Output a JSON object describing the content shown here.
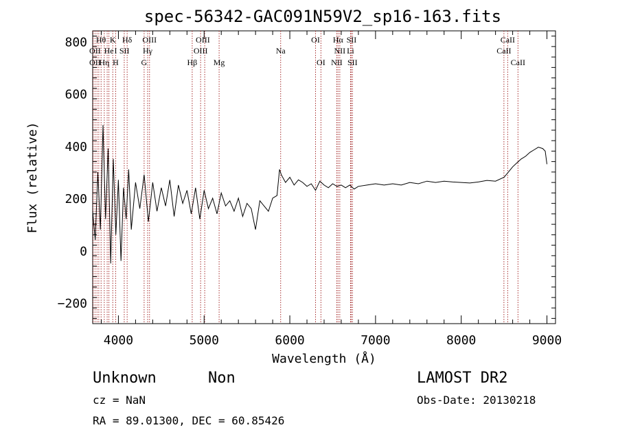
{
  "chart_data": {
    "type": "line",
    "title": "spec-56342-GAC091N59V2_sp16-163.fits",
    "xlabel": "Wavelength (Å)",
    "ylabel": "Flux (relative)",
    "xlim": [
      3700,
      9100
    ],
    "ylim": [
      -280,
      840
    ],
    "x_ticks": [
      4000,
      5000,
      6000,
      7000,
      8000,
      9000
    ],
    "y_ticks": [
      -200,
      0,
      200,
      400,
      600,
      800
    ],
    "grid": false,
    "series": [
      {
        "x": [
          3700,
          3730,
          3760,
          3790,
          3820,
          3850,
          3880,
          3910,
          3940,
          3970,
          4000,
          4030,
          4060,
          4090,
          4120,
          4150,
          4200,
          4250,
          4300,
          4350,
          4400,
          4450,
          4500,
          4550,
          4600,
          4650,
          4700,
          4750,
          4800,
          4850,
          4900,
          4950,
          5000,
          5050,
          5100,
          5150,
          5200,
          5250,
          5300,
          5350,
          5400,
          5450,
          5500,
          5550,
          5600,
          5650,
          5700,
          5750,
          5800,
          5850,
          5880,
          5900,
          5950,
          6000,
          6050,
          6100,
          6150,
          6200,
          6250,
          6300,
          6350,
          6400,
          6450,
          6500,
          6550,
          6600,
          6650,
          6700,
          6750,
          6800,
          6900,
          7000,
          7100,
          7200,
          7300,
          7400,
          7500,
          7600,
          7700,
          7800,
          7900,
          8000,
          8100,
          8200,
          8300,
          8400,
          8500,
          8550,
          8600,
          8650,
          8700,
          8750,
          8800,
          8850,
          8900,
          8950,
          8980,
          9000
        ],
        "y": [
          150,
          40,
          300,
          80,
          480,
          120,
          390,
          -50,
          350,
          60,
          270,
          -40,
          240,
          120,
          310,
          80,
          260,
          160,
          290,
          110,
          260,
          150,
          240,
          170,
          270,
          130,
          250,
          180,
          230,
          140,
          240,
          120,
          230,
          160,
          200,
          140,
          220,
          170,
          190,
          150,
          200,
          130,
          180,
          160,
          80,
          190,
          170,
          150,
          200,
          210,
          310,
          290,
          260,
          280,
          250,
          270,
          260,
          245,
          255,
          230,
          265,
          250,
          240,
          255,
          245,
          250,
          240,
          250,
          235,
          245,
          250,
          255,
          250,
          255,
          250,
          260,
          255,
          265,
          260,
          265,
          262,
          260,
          258,
          262,
          268,
          265,
          280,
          300,
          320,
          335,
          350,
          360,
          375,
          385,
          395,
          390,
          380,
          330
        ]
      }
    ],
    "lines": {
      "positions": [
        3705,
        3727,
        3750,
        3771,
        3798,
        3835,
        3869,
        3889,
        3934,
        3968,
        4068,
        4102,
        4300,
        4341,
        4363,
        4861,
        4959,
        5007,
        5175,
        5893,
        6300,
        6363,
        6548,
        6563,
        6583,
        6708,
        6716,
        6731,
        8498,
        8542,
        8662
      ],
      "labels": [
        {
          "text": "Hθ",
          "x": 3797,
          "row": 0
        },
        {
          "text": "K",
          "x": 3934,
          "row": 0
        },
        {
          "text": "Hδ",
          "x": 4102,
          "row": 0
        },
        {
          "text": "OIII",
          "x": 4363,
          "row": 0
        },
        {
          "text": "OIII",
          "x": 4985,
          "row": 0
        },
        {
          "text": "OI",
          "x": 6300,
          "row": 0
        },
        {
          "text": "Hα",
          "x": 6563,
          "row": 0
        },
        {
          "text": "SII",
          "x": 6720,
          "row": 0
        },
        {
          "text": "CaII",
          "x": 8542,
          "row": 0
        },
        {
          "text": "OII",
          "x": 3727,
          "row": 1
        },
        {
          "text": "He",
          "x": 3889,
          "row": 1
        },
        {
          "text": "I",
          "x": 3968,
          "row": 1
        },
        {
          "text": "SII",
          "x": 4070,
          "row": 1
        },
        {
          "text": "Hγ",
          "x": 4341,
          "row": 1
        },
        {
          "text": "OIII",
          "x": 4959,
          "row": 1
        },
        {
          "text": "Na",
          "x": 5893,
          "row": 1
        },
        {
          "text": "NII",
          "x": 6583,
          "row": 1
        },
        {
          "text": "Li",
          "x": 6708,
          "row": 1
        },
        {
          "text": "CaII",
          "x": 8498,
          "row": 1
        },
        {
          "text": "OII",
          "x": 3727,
          "row": 2
        },
        {
          "text": "Hη",
          "x": 3835,
          "row": 2
        },
        {
          "text": "H",
          "x": 3968,
          "row": 2
        },
        {
          "text": "G",
          "x": 4300,
          "row": 2
        },
        {
          "text": "Hβ",
          "x": 4861,
          "row": 2
        },
        {
          "text": "Mg",
          "x": 5175,
          "row": 2
        },
        {
          "text": "OI",
          "x": 6363,
          "row": 2
        },
        {
          "text": "NII",
          "x": 6548,
          "row": 2
        },
        {
          "text": "SII",
          "x": 6731,
          "row": 2
        },
        {
          "text": "CaII",
          "x": 8662,
          "row": 2
        }
      ]
    }
  },
  "info": {
    "class": "Unknown",
    "subclass": "Non",
    "survey": "LAMOST DR2",
    "cz": "cz = NaN",
    "obs_date": "Obs-Date: 20130218",
    "radec": "RA =  89.01300, DEC =  60.85426"
  }
}
